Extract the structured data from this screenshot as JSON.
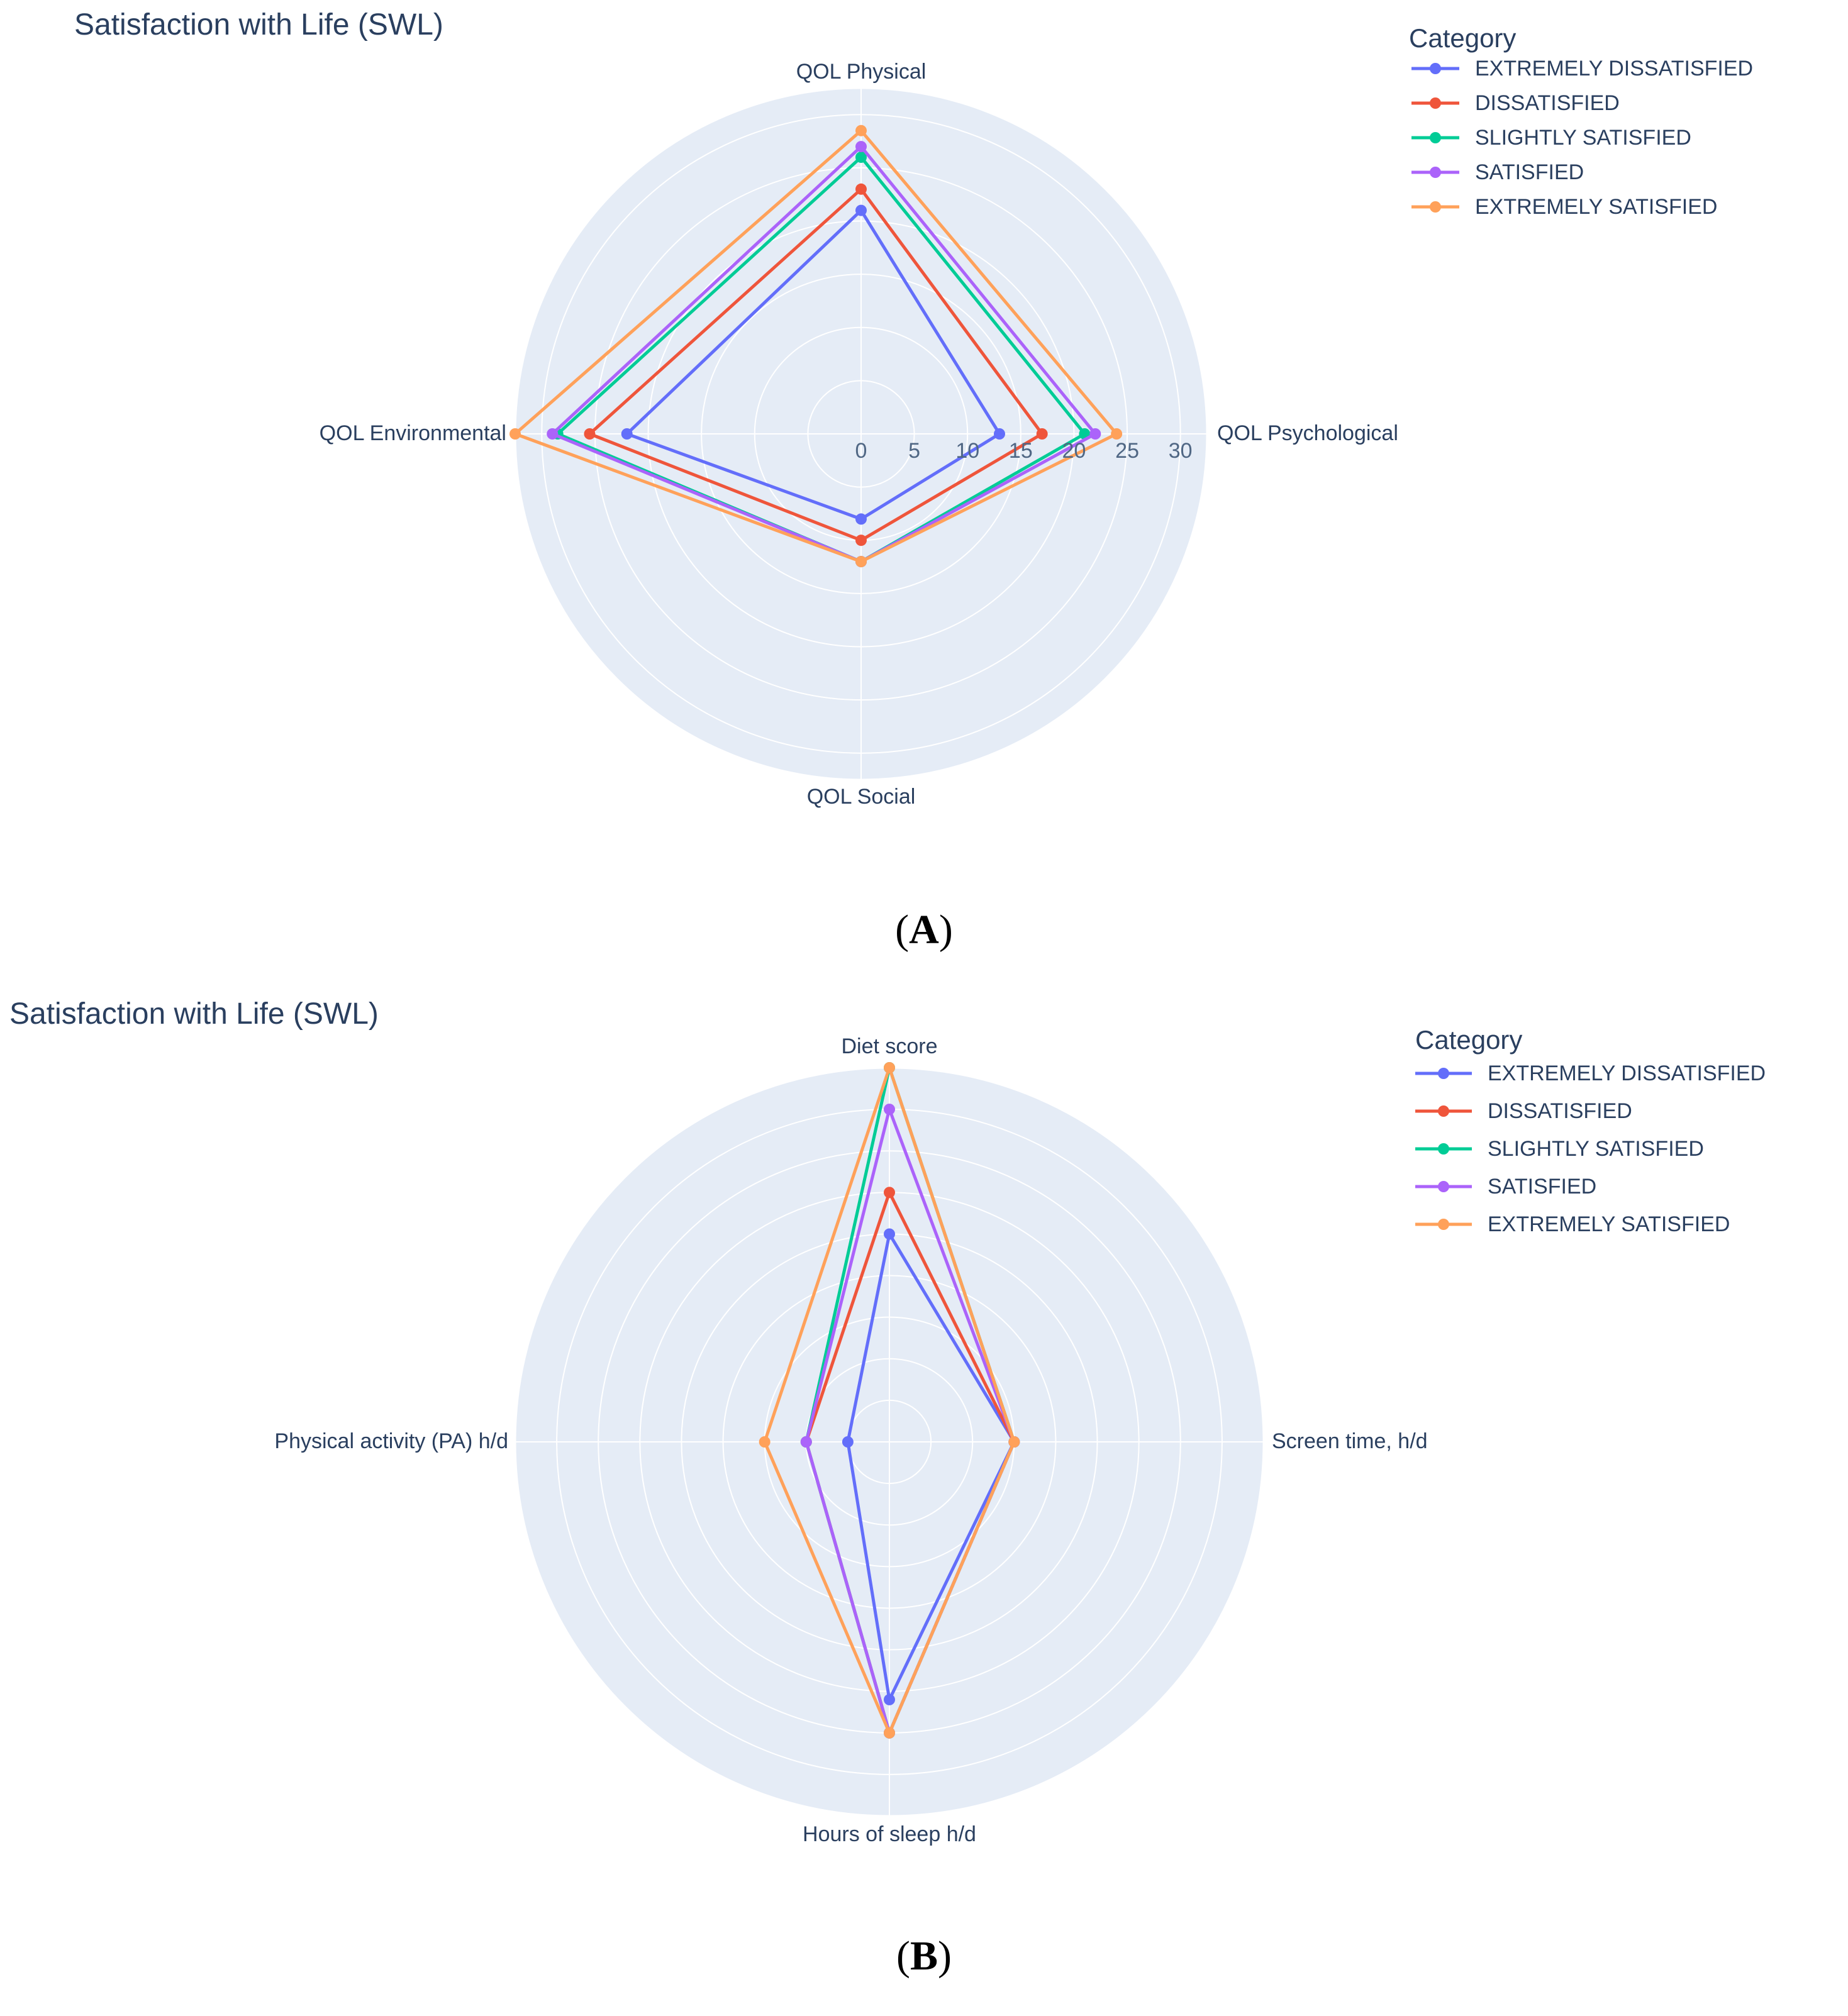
{
  "colors": {
    "background": "#ffffff",
    "polar_bg": "#e5ecf6",
    "grid": "#ffffff",
    "text": "#2a3f5f",
    "tick": "#506784"
  },
  "legend_title": "Category",
  "categories": [
    {
      "name": "EXTREMELY DISSATISFIED",
      "color": "#636efa"
    },
    {
      "name": "DISSATISFIED",
      "color": "#ef553b"
    },
    {
      "name": "SLIGHTLY SATISFIED",
      "color": "#00cc96"
    },
    {
      "name": "SATISFIED",
      "color": "#ab63fa"
    },
    {
      "name": "EXTREMELY SATISFIED",
      "color": "#ffa15a"
    }
  ],
  "panel_labels": {
    "a": {
      "open": "(",
      "letter": "A",
      "close": ")"
    },
    "b": {
      "open": "(",
      "letter": "B",
      "close": ")"
    }
  },
  "chart_data": [
    {
      "type": "radar",
      "id": "A",
      "title": "Satisfaction with Life (SWL)",
      "axes": [
        "QOL Physical",
        "QOL Psychological",
        "QOL Social",
        "QOL Environmental"
      ],
      "radial_range": [
        0,
        32.5
      ],
      "radial_ticks": [
        0,
        5,
        10,
        15,
        20,
        25,
        30
      ],
      "show_radial_tick_labels": true,
      "legend_title": "Category",
      "series": [
        {
          "name": "EXTREMELY DISSATISFIED",
          "color": "#636efa",
          "values": [
            21,
            13,
            8,
            22
          ]
        },
        {
          "name": "DISSATISFIED",
          "color": "#ef553b",
          "values": [
            23,
            17,
            10,
            25.5
          ]
        },
        {
          "name": "SLIGHTLY SATISFIED",
          "color": "#00cc96",
          "values": [
            26,
            21,
            12,
            28.5
          ]
        },
        {
          "name": "SATISFIED",
          "color": "#ab63fa",
          "values": [
            27,
            22,
            12,
            29
          ]
        },
        {
          "name": "EXTREMELY SATISFIED",
          "color": "#ffa15a",
          "values": [
            28.5,
            24,
            12,
            32.5
          ]
        }
      ]
    },
    {
      "type": "radar",
      "id": "B",
      "title": "Satisfaction with Life (SWL)",
      "axes": [
        "Diet score",
        "Screen time, h/d",
        "Hours of sleep h/d",
        "Physical activity (PA) h/d"
      ],
      "radial_range": [
        0,
        9
      ],
      "radial_ticks": [
        1,
        2,
        3,
        4,
        5,
        6,
        7,
        8,
        9
      ],
      "show_radial_tick_labels": false,
      "legend_title": "Category",
      "series": [
        {
          "name": "EXTREMELY DISSATISFIED",
          "color": "#636efa",
          "values": [
            5,
            3,
            6.2,
            1
          ]
        },
        {
          "name": "DISSATISFIED",
          "color": "#ef553b",
          "values": [
            6,
            3,
            7,
            2
          ]
        },
        {
          "name": "SLIGHTLY SATISFIED",
          "color": "#00cc96",
          "values": [
            9,
            3,
            7,
            2
          ]
        },
        {
          "name": "SATISFIED",
          "color": "#ab63fa",
          "values": [
            8,
            3,
            7,
            2
          ]
        },
        {
          "name": "EXTREMELY SATISFIED",
          "color": "#ffa15a",
          "values": [
            9,
            3,
            7,
            3
          ]
        }
      ]
    }
  ]
}
